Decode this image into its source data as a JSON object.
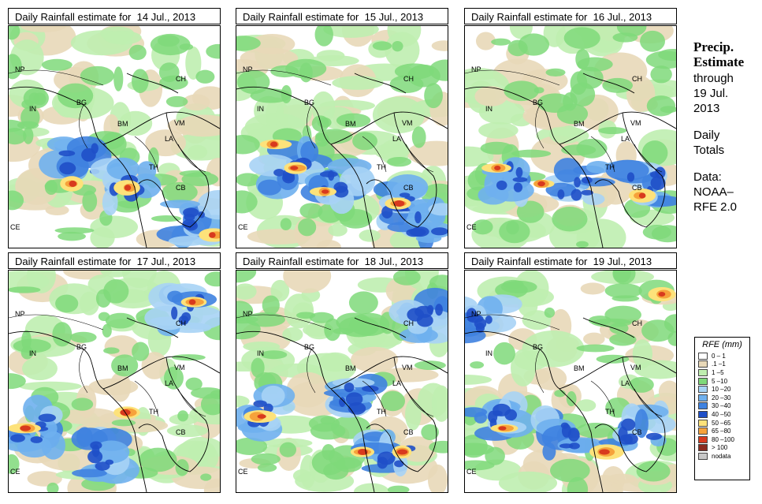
{
  "panels": [
    {
      "title_prefix": "Daily Rainfall estimate for",
      "date": "14 Jul., 2013"
    },
    {
      "title_prefix": "Daily Rainfall estimate for",
      "date": "15 Jul., 2013"
    },
    {
      "title_prefix": "Daily Rainfall estimate for",
      "date": "16 Jul., 2013"
    },
    {
      "title_prefix": "Daily Rainfall estimate for",
      "date": "17 Jul., 2013"
    },
    {
      "title_prefix": "Daily Rainfall estimate for",
      "date": "18 Jul., 2013"
    },
    {
      "title_prefix": "Daily Rainfall estimate for",
      "date": "19 Jul., 2013"
    }
  ],
  "country_labels": {
    "np": "NP",
    "ch": "CH",
    "in": "IN",
    "bg": "BG",
    "bm": "BM",
    "vm": "VM",
    "la": "LA",
    "th": "TH",
    "cb": "CB",
    "ce": "CE"
  },
  "side": {
    "heading_1": "Precip.",
    "heading_2": "Estimate",
    "through": "through",
    "date_1": "19 Jul.",
    "date_2": "2013",
    "totals_1": "Daily",
    "totals_2": "Totals",
    "data_1": "Data:",
    "data_2": "NOAA–",
    "data_3": "RFE 2.0"
  },
  "legend": {
    "title": "RFE (mm)",
    "items": [
      {
        "label": "0 – 1",
        "color": "#ffffff"
      },
      {
        "label": ".1 –1",
        "color": "#e8d8b8"
      },
      {
        "label": "1 –5",
        "color": "#bfeeb0"
      },
      {
        "label": "5 –10",
        "color": "#7fd97a"
      },
      {
        "label": "10 –20",
        "color": "#a7d3f5"
      },
      {
        "label": "20 –30",
        "color": "#6fb0ee"
      },
      {
        "label": "30 –40",
        "color": "#3f82e0"
      },
      {
        "label": "40 –50",
        "color": "#1f4fc8"
      },
      {
        "label": "50 –65",
        "color": "#fde27a"
      },
      {
        "label": "65 –80",
        "color": "#f6a23b"
      },
      {
        "label": "80 –100",
        "color": "#d83a1e"
      },
      {
        "label": "> 100",
        "color": "#8a2a1e"
      },
      {
        "label": "nodata",
        "color": "#c8c8c8"
      }
    ]
  }
}
